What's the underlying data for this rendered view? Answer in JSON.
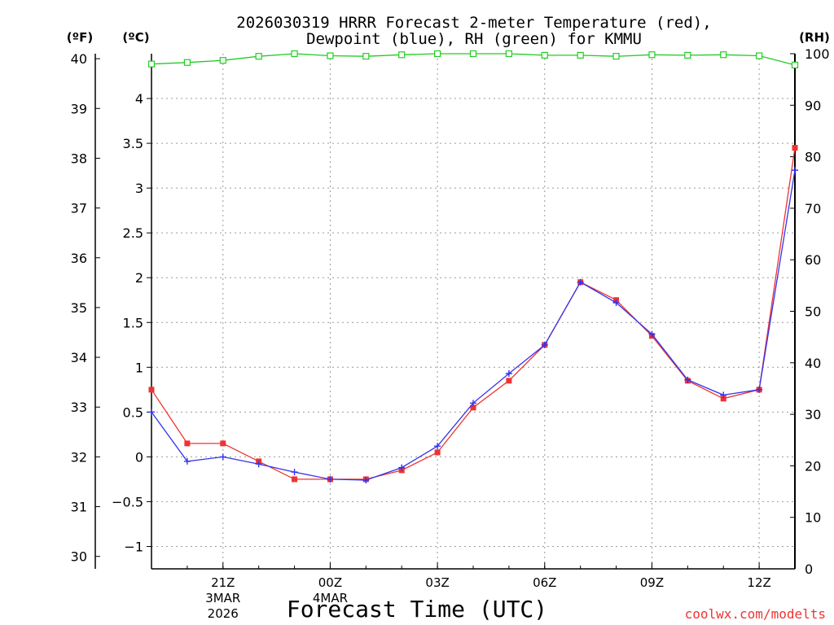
{
  "chart_data": {
    "type": "line",
    "title_line1": "2026030319 HRRR Forecast 2-meter Temperature (red),",
    "title_line2": "Dewpoint (blue), RH (green) for KMMU",
    "xlabel": "Forecast Time (UTC)",
    "credit": "coolwx.com/modelts",
    "units": {
      "fahrenheit": "(ºF)",
      "celsius": "(ºC)",
      "rh": "(RH)"
    },
    "x_hours": [
      19,
      20,
      21,
      22,
      23,
      24,
      25,
      26,
      27,
      28,
      29,
      30,
      31,
      32,
      33,
      34,
      35,
      36,
      37
    ],
    "x_range": [
      19,
      37
    ],
    "x_ticks": [
      {
        "hour": 21,
        "label": "21Z",
        "sub1": "3MAR",
        "sub2": "2026"
      },
      {
        "hour": 24,
        "label": "00Z",
        "sub1": "4MAR",
        "sub2": ""
      },
      {
        "hour": 27,
        "label": "03Z",
        "sub1": "",
        "sub2": ""
      },
      {
        "hour": 30,
        "label": "06Z",
        "sub1": "",
        "sub2": ""
      },
      {
        "hour": 33,
        "label": "09Z",
        "sub1": "",
        "sub2": ""
      },
      {
        "hour": 36,
        "label": "12Z",
        "sub1": "",
        "sub2": ""
      }
    ],
    "celsius_ylim": [
      -1.25,
      4.5
    ],
    "celsius_ticks": [
      "-1",
      "-0.5",
      "0",
      "0.5",
      "1",
      "1.5",
      "2",
      "2.5",
      "3",
      "3.5",
      "4"
    ],
    "fahrenheit_ylim": [
      29.75,
      40.1
    ],
    "fahrenheit_ticks": [
      "30",
      "31",
      "32",
      "33",
      "34",
      "35",
      "36",
      "37",
      "38",
      "39",
      "40"
    ],
    "rh_ylim": [
      0,
      100
    ],
    "rh_ticks": [
      "0",
      "10",
      "20",
      "30",
      "40",
      "50",
      "60",
      "70",
      "80",
      "90",
      "100"
    ],
    "series": [
      {
        "name": "Temperature",
        "unit": "C",
        "color": "#ee3333",
        "marker": "filled-square",
        "values": [
          0.75,
          0.15,
          0.15,
          -0.05,
          -0.25,
          -0.25,
          -0.25,
          -0.15,
          0.05,
          0.55,
          0.85,
          1.25,
          1.95,
          1.75,
          1.35,
          0.85,
          0.65,
          0.75,
          3.45
        ]
      },
      {
        "name": "Dewpoint",
        "unit": "C",
        "color": "#3333ee",
        "marker": "plus",
        "values": [
          0.5,
          -0.05,
          0.0,
          -0.08,
          -0.17,
          -0.25,
          -0.26,
          -0.12,
          0.12,
          0.6,
          0.93,
          1.25,
          1.95,
          1.72,
          1.37,
          0.86,
          0.69,
          0.75,
          3.2
        ]
      },
      {
        "name": "RH",
        "unit": "%",
        "color": "#22cc22",
        "marker": "open-square",
        "values": [
          98,
          98.3,
          98.7,
          99.5,
          100,
          99.6,
          99.5,
          99.8,
          100,
          100,
          100,
          99.7,
          99.7,
          99.5,
          99.8,
          99.7,
          99.8,
          99.6,
          97.8
        ]
      }
    ]
  }
}
